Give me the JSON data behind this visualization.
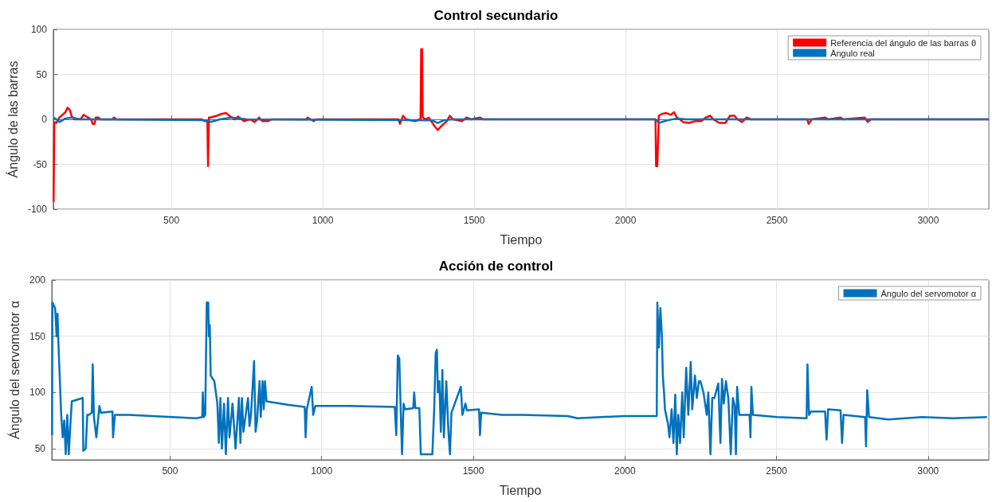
{
  "chart_data": [
    {
      "type": "line",
      "title": "Control secundario",
      "xlabel": "Tiempo",
      "ylabel": "Ángulo de las barras",
      "xlim": [
        110,
        3200
      ],
      "xticks": [
        500,
        1000,
        1500,
        2000,
        2500,
        3000
      ],
      "ylim": [
        -100,
        100
      ],
      "yticks": [
        -100,
        -50,
        0,
        50,
        100
      ],
      "grid": true,
      "legend": "top right",
      "series": [
        {
          "name": "Referencia del ángulo de las barras θ",
          "color": "#ff0000",
          "x": [
            111,
            112,
            113,
            120,
            130,
            140,
            150,
            157,
            165,
            170,
            180,
            200,
            210,
            215,
            225,
            235,
            240,
            246,
            250,
            260,
            265,
            305,
            311,
            318,
            600,
            610,
            619,
            621,
            624,
            628,
            650,
            665,
            680,
            695,
            710,
            720,
            740,
            760,
            775,
            790,
            800,
            820,
            830,
            945,
            950,
            960,
            970,
            980,
            1250,
            1255,
            1265,
            1275,
            1305,
            1320,
            1323,
            1325,
            1328,
            1330,
            1340,
            1350,
            1360,
            1370,
            1380,
            1390,
            1400,
            1410,
            1420,
            1430,
            1460,
            1475,
            1490,
            1520,
            1530,
            2095,
            2099,
            2101,
            2105,
            2110,
            2120,
            2135,
            2150,
            2160,
            2170,
            2180,
            2190,
            2210,
            2230,
            2250,
            2265,
            2280,
            2290,
            2310,
            2330,
            2345,
            2360,
            2370,
            2385,
            2400,
            2415,
            2600,
            2605,
            2615,
            2660,
            2670,
            2710,
            2720,
            2790,
            2800,
            2810,
            3200
          ],
          "values": [
            -92,
            -92,
            -3,
            -4,
            2,
            5,
            8,
            13,
            10,
            4,
            0,
            0,
            5,
            4,
            2,
            0,
            -5,
            -5,
            2,
            2,
            0,
            0,
            2,
            0,
            0,
            -2,
            -2,
            -52,
            2,
            2,
            4,
            6,
            7,
            3,
            0,
            3,
            -2,
            0,
            -3,
            2,
            -2,
            -2,
            0,
            0,
            2,
            0,
            -2,
            0,
            0,
            -5,
            4,
            0,
            -2,
            0,
            0,
            78,
            78,
            2,
            0,
            2,
            -3,
            -8,
            -12,
            -8,
            -5,
            -2,
            4,
            0,
            -2,
            2,
            0,
            2,
            0,
            0,
            0,
            -52,
            -52,
            4,
            6,
            7,
            5,
            8,
            2,
            0,
            -3,
            -4,
            -2,
            -2,
            2,
            4,
            0,
            -4,
            -4,
            4,
            4,
            0,
            -3,
            2,
            0,
            0,
            -5,
            0,
            2,
            0,
            2,
            0,
            2,
            -3,
            0,
            0
          ]
        },
        {
          "name": "Ángulo real",
          "color": "#0072bd",
          "x": [
            111,
            120,
            130,
            150,
            170,
            200,
            230,
            620,
            630,
            660,
            700,
            750,
            1360,
            1380,
            1400,
            1430,
            2100,
            2110,
            2140,
            2170,
            2200,
            3200
          ],
          "values": [
            2,
            0,
            -3,
            1,
            2,
            0,
            0,
            -1,
            -3,
            0,
            2,
            0,
            -1,
            -4,
            -1,
            0,
            0,
            -4,
            -1,
            1,
            0,
            0
          ]
        }
      ]
    },
    {
      "type": "line",
      "title": "Acción de control",
      "xlabel": "Tiempo",
      "ylabel": "Ángulo del servomotor α",
      "xlim": [
        110,
        3200
      ],
      "xticks": [
        500,
        1000,
        1500,
        2000,
        2500,
        3000
      ],
      "ylim": [
        40,
        200
      ],
      "yticks": [
        50,
        100,
        150,
        200
      ],
      "grid": true,
      "legend": "top right",
      "series": [
        {
          "name": "Ángulo del servomotor α",
          "color": "#0072bd",
          "x": [
            111,
            112,
            121,
            126,
            129,
            131,
            136,
            141,
            146,
            151,
            156,
            161,
            166,
            171,
            176,
            212,
            214,
            222,
            227,
            232,
            242,
            245,
            249,
            257,
            267,
            272,
            310,
            312,
            318,
            364,
            586,
            606,
            608,
            611,
            616,
            621,
            626,
            628,
            631,
            634,
            646,
            656,
            661,
            666,
            671,
            678,
            684,
            691,
            696,
            706,
            716,
            727,
            732,
            737,
            742,
            752,
            757,
            762,
            767,
            777,
            782,
            787,
            795,
            799,
            805,
            809,
            813,
            818,
            888,
            944,
            947,
            951,
            967,
            972,
            979,
            1090,
            1241,
            1246,
            1251,
            1256,
            1261,
            1265,
            1270,
            1275,
            1302,
            1305,
            1309,
            1322,
            1327,
            1365,
            1371,
            1376,
            1380,
            1383,
            1388,
            1393,
            1398,
            1403,
            1411,
            1418,
            1423,
            1428,
            1459,
            1464,
            1474,
            1479,
            1519,
            1522,
            1526,
            1595,
            1660,
            1812,
            1843,
            1995,
            2105,
            2107,
            2112,
            2117,
            2122,
            2125,
            2129,
            2132,
            2142,
            2147,
            2154,
            2160,
            2166,
            2171,
            2176,
            2182,
            2189,
            2194,
            2202,
            2209,
            2217,
            2222,
            2231,
            2237,
            2244,
            2249,
            2259,
            2270,
            2275,
            2282,
            2288,
            2295,
            2308,
            2315,
            2320,
            2326,
            2333,
            2341,
            2349,
            2356,
            2362,
            2366,
            2370,
            2377,
            2411,
            2414,
            2417,
            2422,
            2503,
            2599,
            2602,
            2607,
            2614,
            2660,
            2665,
            2670,
            2711,
            2716,
            2721,
            2792,
            2795,
            2799,
            2805,
            2868,
            2980,
            3082,
            3194
          ],
          "values": [
            62,
            180,
            175,
            150,
            170,
            150,
            115,
            80,
            60,
            75,
            45,
            80,
            45,
            70,
            92,
            95,
            48,
            50,
            80,
            80,
            82,
            125,
            78,
            60,
            88,
            82,
            83,
            60,
            80,
            80,
            77,
            78,
            100,
            78,
            80,
            180,
            180,
            150,
            160,
            115,
            110,
            90,
            55,
            95,
            50,
            90,
            45,
            95,
            60,
            90,
            50,
            95,
            55,
            95,
            65,
            85,
            95,
            70,
            80,
            128,
            65,
            75,
            110,
            78,
            110,
            85,
            110,
            92,
            89,
            87,
            60,
            85,
            105,
            80,
            88,
            88,
            87,
            62,
            133,
            130,
            80,
            45,
            90,
            85,
            86,
            100,
            86,
            86,
            45,
            45,
            85,
            135,
            138,
            100,
            110,
            65,
            120,
            60,
            110,
            65,
            45,
            82,
            105,
            80,
            90,
            84,
            85,
            62,
            82,
            80,
            80,
            79,
            77,
            79,
            79,
            180,
            140,
            175,
            150,
            115,
            100,
            85,
            72,
            60,
            85,
            55,
            98,
            45,
            80,
            55,
            100,
            60,
            122,
            80,
            127,
            85,
            115,
            95,
            110,
            110,
            100,
            80,
            100,
            45,
            95,
            95,
            108,
            55,
            112,
            90,
            110,
            95,
            45,
            95,
            88,
            45,
            105,
            80,
            80,
            60,
            105,
            80,
            78,
            77,
            125,
            80,
            83,
            83,
            58,
            85,
            84,
            55,
            80,
            78,
            52,
            102,
            78,
            76,
            78,
            77,
            78
          ]
        }
      ]
    }
  ]
}
